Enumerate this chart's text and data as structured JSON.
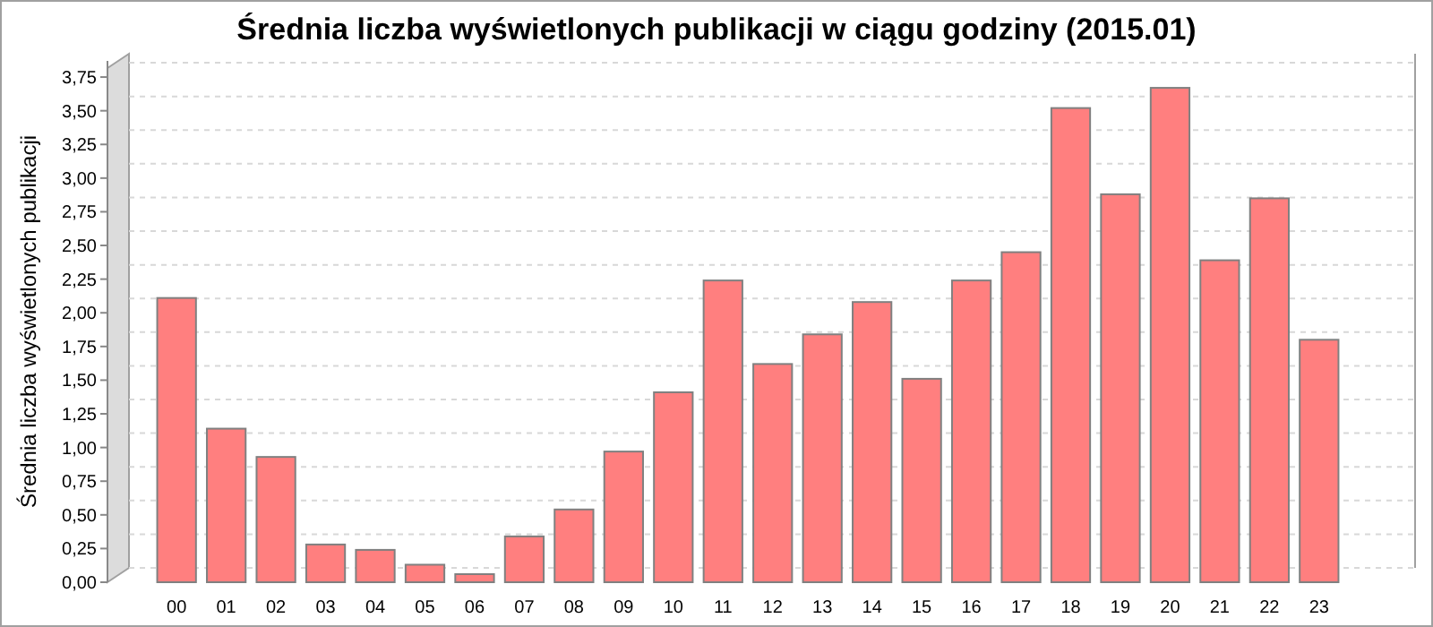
{
  "chart_data": {
    "type": "bar",
    "title": "Średnia liczba wyświetlonych publikacji w ciągu godziny (2015.01)",
    "ylabel": "Średnia liczba wyświetlonych publikacji",
    "categories": [
      "00",
      "01",
      "02",
      "03",
      "04",
      "05",
      "06",
      "07",
      "08",
      "09",
      "10",
      "11",
      "12",
      "13",
      "14",
      "15",
      "16",
      "17",
      "18",
      "19",
      "20",
      "21",
      "22",
      "23"
    ],
    "values": [
      2.11,
      1.14,
      0.93,
      0.28,
      0.24,
      0.13,
      0.06,
      0.34,
      0.54,
      0.97,
      1.41,
      2.24,
      1.62,
      1.84,
      2.08,
      1.51,
      2.24,
      2.45,
      3.52,
      2.88,
      3.67,
      2.39,
      2.85,
      1.8
    ],
    "color": "#ff7f7f",
    "ylim": [
      0,
      3.87
    ],
    "yticks": [
      {
        "value": 0,
        "label": "0,00"
      },
      {
        "value": 0.25,
        "label": "0,25"
      },
      {
        "value": 0.5,
        "label": "0,50"
      },
      {
        "value": 0.75,
        "label": "0,75"
      },
      {
        "value": 1,
        "label": "1,00"
      },
      {
        "value": 1.25,
        "label": "1,25"
      },
      {
        "value": 1.5,
        "label": "1,50"
      },
      {
        "value": 1.75,
        "label": "1,75"
      },
      {
        "value": 2,
        "label": "2,00"
      },
      {
        "value": 2.25,
        "label": "2,25"
      },
      {
        "value": 2.5,
        "label": "2,50"
      },
      {
        "value": 2.75,
        "label": "2,75"
      },
      {
        "value": 3,
        "label": "3,00"
      },
      {
        "value": 3.25,
        "label": "3,25"
      },
      {
        "value": 3.5,
        "label": "3,50"
      },
      {
        "value": 3.75,
        "label": "3,75"
      }
    ],
    "grid": "y"
  }
}
